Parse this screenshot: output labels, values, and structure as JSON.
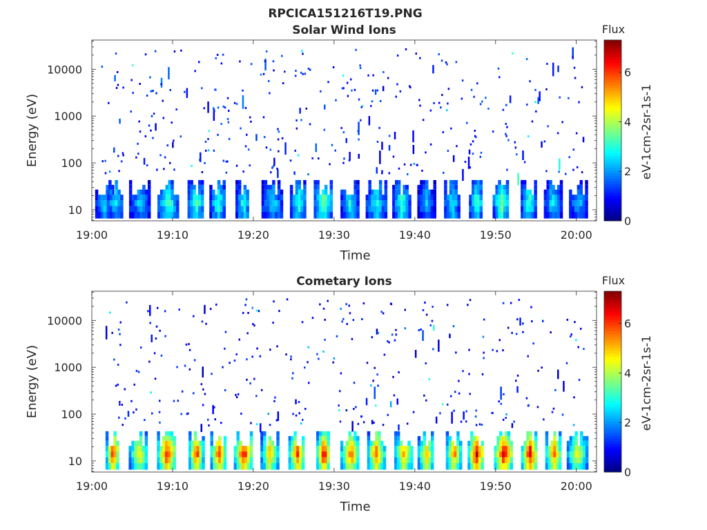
{
  "figure": {
    "title": "RPCICA151216T19.PNG"
  },
  "chart_data": [
    {
      "type": "heatmap",
      "title": "Solar Wind Ions",
      "xlabel": "Time",
      "ylabel": "Energy (eV)",
      "x_ticks": [
        "19:00",
        "19:10",
        "19:20",
        "19:30",
        "19:40",
        "19:50",
        "20:00"
      ],
      "x_tick_minutes": [
        0,
        10,
        20,
        30,
        40,
        50,
        60
      ],
      "xlim_minutes": [
        0,
        62.5
      ],
      "y_scale": "log",
      "y_ticks": [
        "10",
        "100",
        "1000",
        "10000"
      ],
      "y_tick_values": [
        10,
        100,
        1000,
        10000
      ],
      "ylim": [
        5.8,
        42000
      ],
      "colorbar": {
        "label": "Flux",
        "unit": "eV-1cm-2sr-1s-1",
        "ticks": [
          "0",
          "2",
          "4",
          "6"
        ],
        "range": [
          0,
          7.3
        ],
        "colormap": "jet"
      },
      "low_energy_bursts": [
        {
          "t": 1.5,
          "v": 2.6
        },
        {
          "t": 2.8,
          "v": 2.9
        },
        {
          "t": 5.8,
          "v": 2.5
        },
        {
          "t": 9.3,
          "v": 3.4
        },
        {
          "t": 12.8,
          "v": 3.5
        },
        {
          "t": 15.5,
          "v": 3.2
        },
        {
          "t": 18.6,
          "v": 3.2
        },
        {
          "t": 22.2,
          "v": 2.8
        },
        {
          "t": 25.5,
          "v": 3.2
        },
        {
          "t": 28.6,
          "v": 3.8
        },
        {
          "t": 31.8,
          "v": 3.0
        },
        {
          "t": 35.1,
          "v": 3.0
        },
        {
          "t": 38.2,
          "v": 3.3
        },
        {
          "t": 41.3,
          "v": 2.4
        },
        {
          "t": 44.5,
          "v": 2.9
        },
        {
          "t": 47.5,
          "v": 3.5
        },
        {
          "t": 50.6,
          "v": 3.9
        },
        {
          "t": 54.0,
          "v": 3.4
        },
        {
          "t": 57.0,
          "v": 2.8
        },
        {
          "t": 60.2,
          "v": 2.4
        }
      ],
      "scatter_density": 360,
      "scatter_value": [
        0.5,
        3.5
      ]
    },
    {
      "type": "heatmap",
      "title": "Cometary Ions",
      "xlabel": "Time",
      "ylabel": "Energy (eV)",
      "x_ticks": [
        "19:00",
        "19:10",
        "19:20",
        "19:30",
        "19:40",
        "19:50",
        "20:00"
      ],
      "x_tick_minutes": [
        0,
        10,
        20,
        30,
        40,
        50,
        60
      ],
      "xlim_minutes": [
        0,
        62.5
      ],
      "y_scale": "log",
      "y_ticks": [
        "10",
        "100",
        "1000",
        "10000"
      ],
      "y_tick_values": [
        10,
        100,
        1000,
        10000
      ],
      "ylim": [
        5.8,
        42000
      ],
      "colorbar": {
        "label": "Flux",
        "unit": "eV-1cm-2sr-1s-1",
        "ticks": [
          "0",
          "2",
          "4",
          "6"
        ],
        "range": [
          0,
          7.3
        ],
        "colormap": "jet"
      },
      "low_energy_bursts": [
        {
          "t": 2.5,
          "v": 6.4
        },
        {
          "t": 5.7,
          "v": 5.0
        },
        {
          "t": 9.2,
          "v": 6.6
        },
        {
          "t": 12.8,
          "v": 6.5
        },
        {
          "t": 15.6,
          "v": 6.4
        },
        {
          "t": 18.7,
          "v": 6.6
        },
        {
          "t": 21.9,
          "v": 5.4
        },
        {
          "t": 25.3,
          "v": 6.3
        },
        {
          "t": 28.6,
          "v": 6.8
        },
        {
          "t": 31.9,
          "v": 6.0
        },
        {
          "t": 35.1,
          "v": 6.0
        },
        {
          "t": 38.5,
          "v": 5.6
        },
        {
          "t": 41.3,
          "v": 5.4
        },
        {
          "t": 44.7,
          "v": 5.8
        },
        {
          "t": 47.5,
          "v": 6.9
        },
        {
          "t": 50.9,
          "v": 6.9
        },
        {
          "t": 54.1,
          "v": 6.8
        },
        {
          "t": 57.1,
          "v": 5.8
        },
        {
          "t": 60.0,
          "v": 4.8
        }
      ],
      "scatter_density": 330,
      "scatter_value": [
        0.4,
        3.2
      ]
    }
  ]
}
